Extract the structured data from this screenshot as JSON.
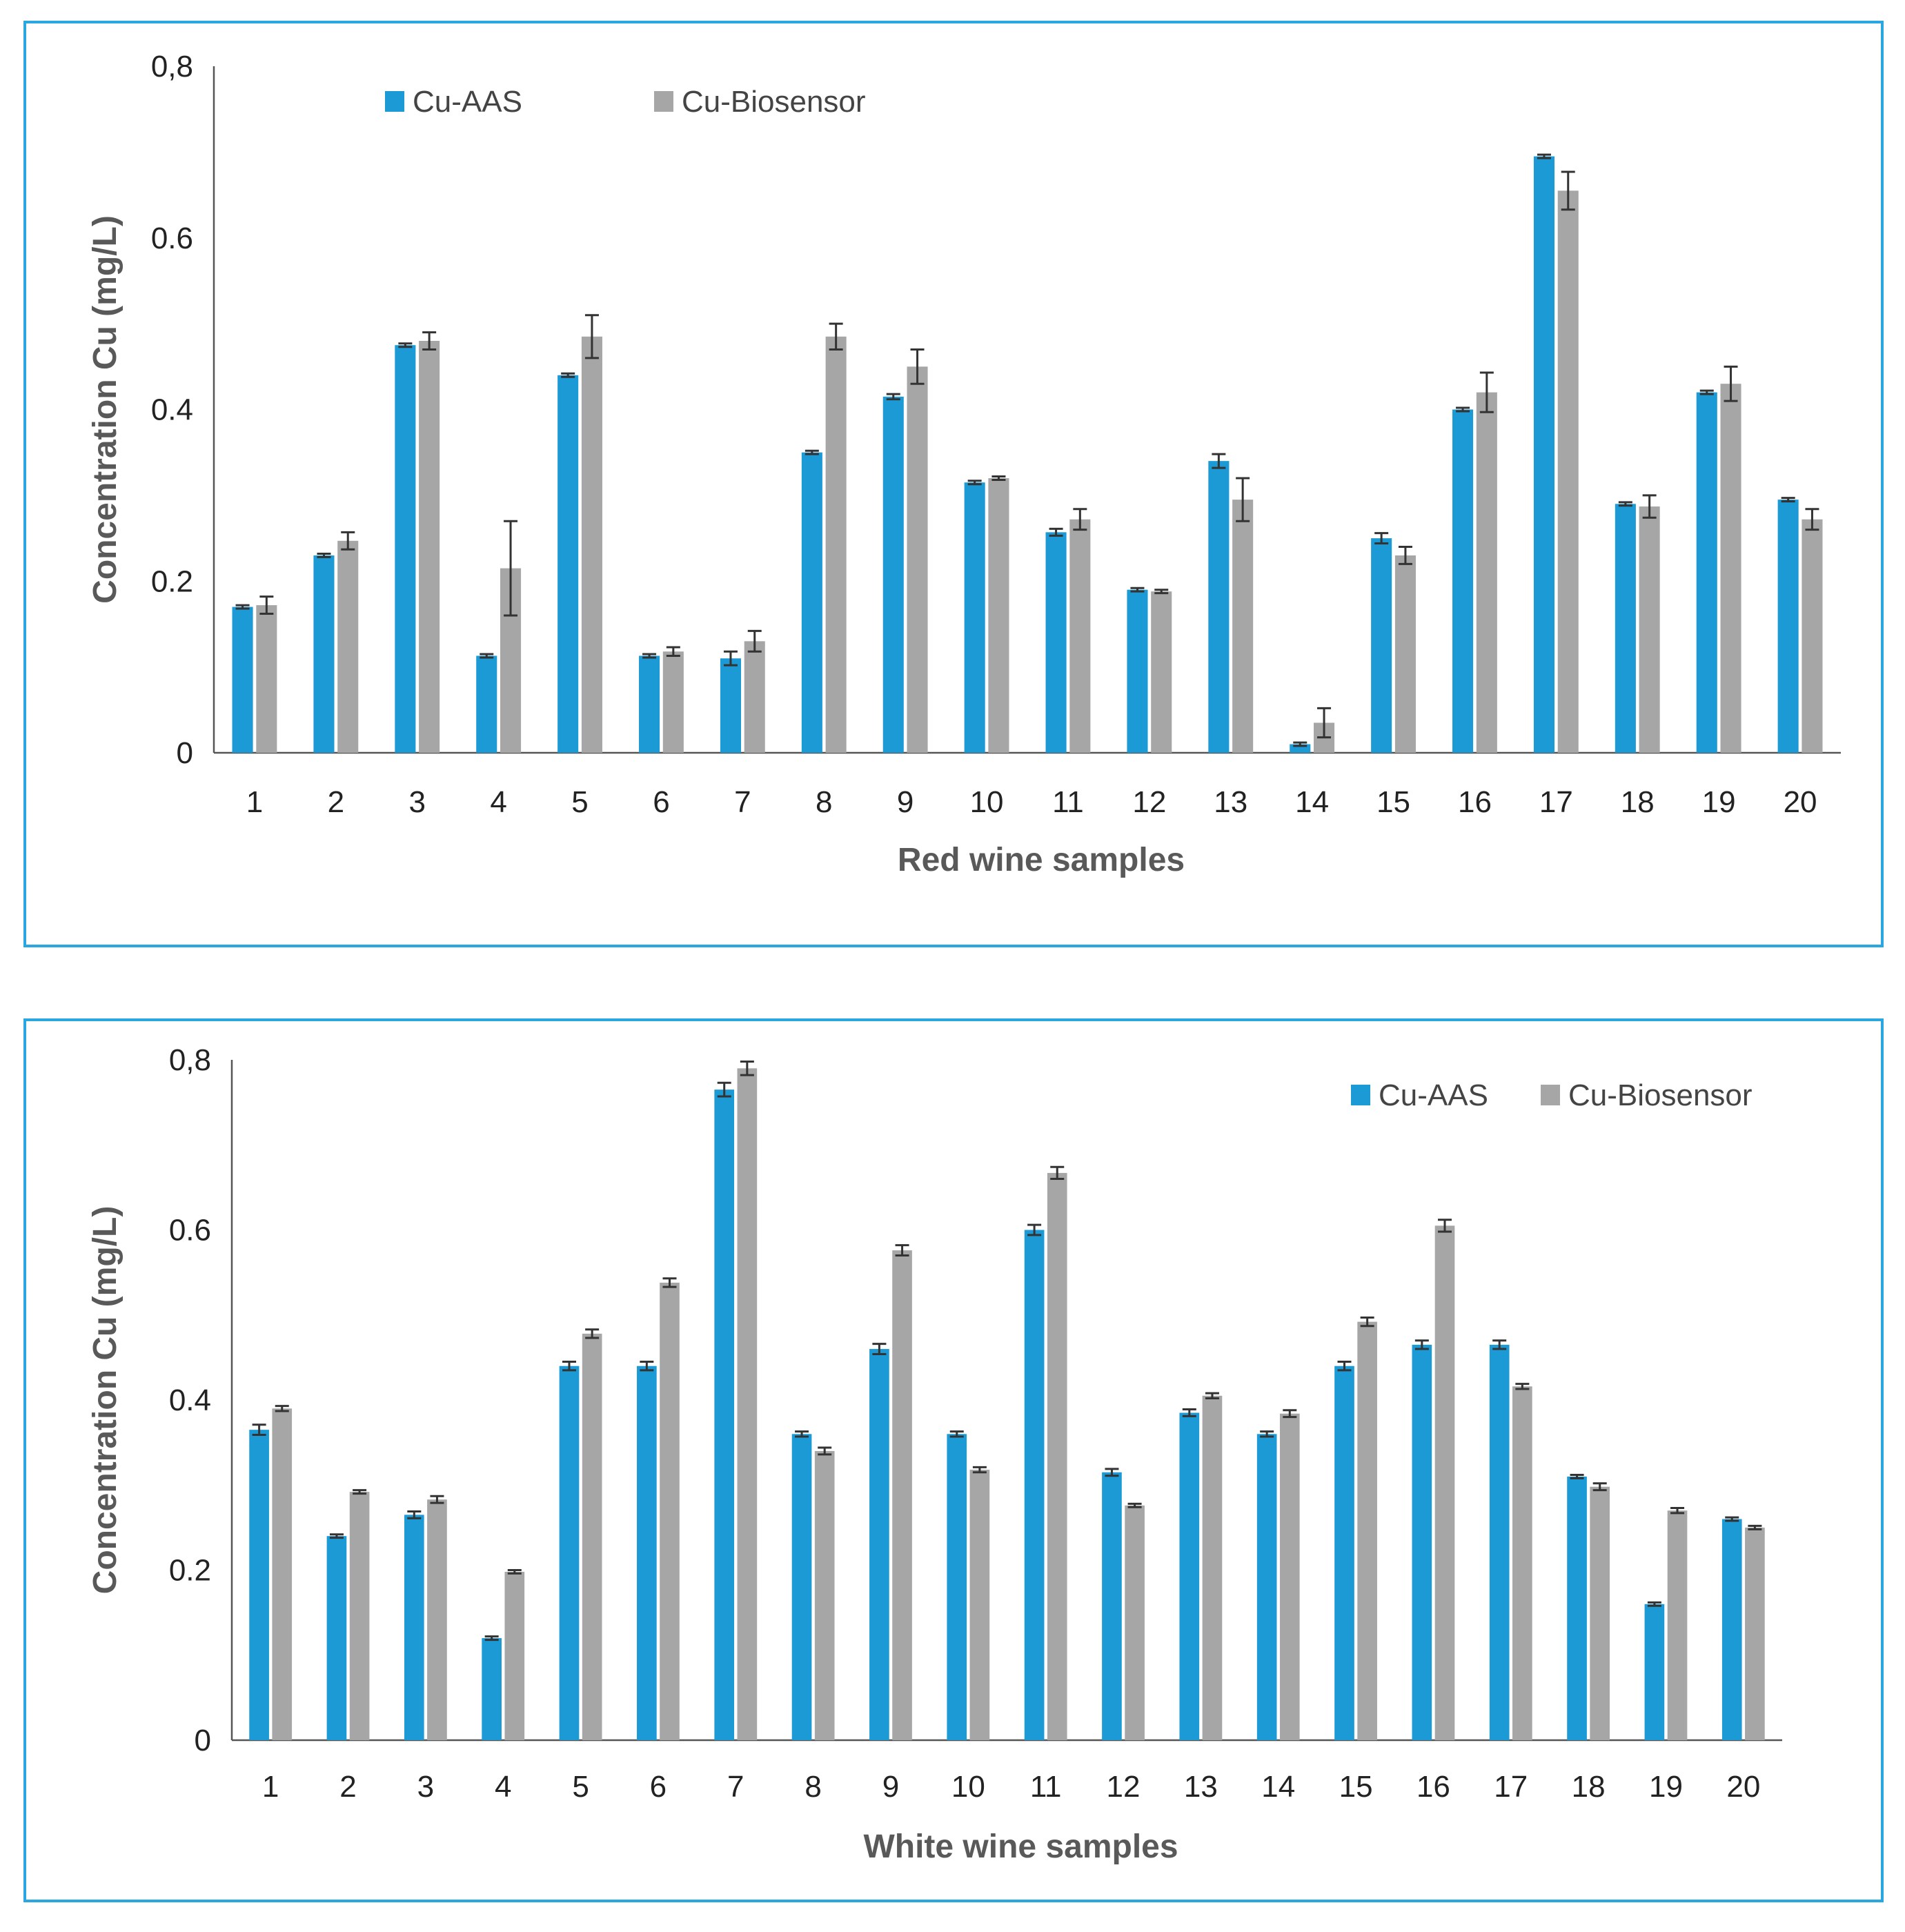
{
  "colors": {
    "aas": "#1b9ad6",
    "bio": "#a6a6a6",
    "axis": "#555555",
    "frame": "#2aa6e0"
  },
  "chart_data": [
    {
      "type": "bar",
      "title": "",
      "xlabel": "Red wine samples",
      "ylabel": "Concentration Cu (mg/L)",
      "ylim": [
        0,
        0.8
      ],
      "yticks": [
        "0",
        "0.2",
        "0.4",
        "0.6",
        "0,8"
      ],
      "legend_position": "top-left",
      "categories": [
        "1",
        "2",
        "3",
        "4",
        "5",
        "6",
        "7",
        "8",
        "9",
        "10",
        "11",
        "12",
        "13",
        "14",
        "15",
        "16",
        "17",
        "18",
        "19",
        "20"
      ],
      "series": [
        {
          "name": "Cu-AAS",
          "values": [
            0.17,
            0.23,
            0.475,
            0.113,
            0.44,
            0.113,
            0.11,
            0.35,
            0.415,
            0.315,
            0.257,
            0.19,
            0.34,
            0.01,
            0.25,
            0.4,
            0.695,
            0.29,
            0.42,
            0.295
          ],
          "errors": [
            0.002,
            0.002,
            0.002,
            0.002,
            0.002,
            0.002,
            0.008,
            0.002,
            0.003,
            0.002,
            0.004,
            0.002,
            0.008,
            0.002,
            0.006,
            0.002,
            0.002,
            0.002,
            0.002,
            0.002
          ]
        },
        {
          "name": "Cu-Biosensor",
          "values": [
            0.172,
            0.247,
            0.48,
            0.215,
            0.485,
            0.118,
            0.13,
            0.485,
            0.45,
            0.32,
            0.272,
            0.188,
            0.295,
            0.035,
            0.23,
            0.42,
            0.655,
            0.287,
            0.43,
            0.272
          ],
          "errors": [
            0.01,
            0.01,
            0.01,
            0.055,
            0.025,
            0.005,
            0.012,
            0.015,
            0.02,
            0.002,
            0.012,
            0.002,
            0.025,
            0.017,
            0.01,
            0.023,
            0.022,
            0.013,
            0.02,
            0.012
          ]
        }
      ]
    },
    {
      "type": "bar",
      "title": "",
      "xlabel": "White wine samples",
      "ylabel": "Concentration Cu (mg/L)",
      "ylim": [
        0,
        0.8
      ],
      "yticks": [
        "0",
        "0.2",
        "0.4",
        "0.6",
        "0,8"
      ],
      "legend_position": "top-right",
      "categories": [
        "1",
        "2",
        "3",
        "4",
        "5",
        "6",
        "7",
        "8",
        "9",
        "10",
        "11",
        "12",
        "13",
        "14",
        "15",
        "16",
        "17",
        "18",
        "19",
        "20"
      ],
      "series": [
        {
          "name": "Cu-AAS",
          "values": [
            0.365,
            0.24,
            0.265,
            0.12,
            0.44,
            0.44,
            0.765,
            0.36,
            0.46,
            0.36,
            0.6,
            0.315,
            0.385,
            0.36,
            0.44,
            0.465,
            0.465,
            0.31,
            0.16,
            0.26
          ],
          "errors": [
            0.006,
            0.002,
            0.004,
            0.002,
            0.005,
            0.005,
            0.008,
            0.003,
            0.006,
            0.003,
            0.006,
            0.004,
            0.004,
            0.003,
            0.005,
            0.005,
            0.005,
            0.002,
            0.002,
            0.002
          ]
        },
        {
          "name": "Cu-Biosensor",
          "values": [
            0.39,
            0.292,
            0.283,
            0.198,
            0.478,
            0.538,
            0.79,
            0.34,
            0.576,
            0.318,
            0.667,
            0.276,
            0.405,
            0.384,
            0.492,
            0.605,
            0.416,
            0.298,
            0.27,
            0.25
          ],
          "errors": [
            0.003,
            0.002,
            0.004,
            0.002,
            0.005,
            0.005,
            0.008,
            0.004,
            0.006,
            0.003,
            0.007,
            0.002,
            0.003,
            0.004,
            0.005,
            0.007,
            0.003,
            0.004,
            0.003,
            0.002
          ]
        }
      ]
    }
  ]
}
